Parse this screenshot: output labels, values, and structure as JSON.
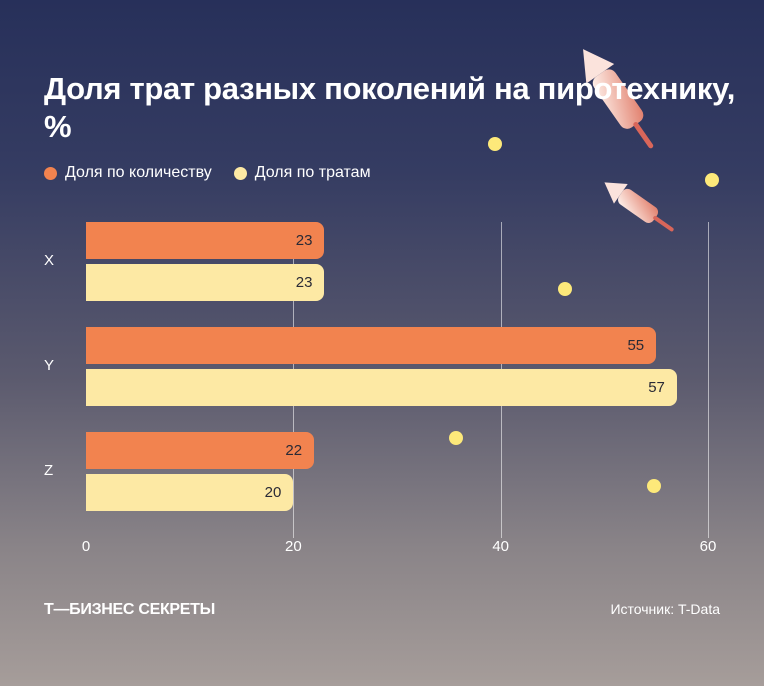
{
  "chart_data": {
    "type": "bar",
    "orientation": "horizontal",
    "title": "Доля трат разных поколений на пиротехнику, %",
    "categories": [
      "X",
      "Y",
      "Z"
    ],
    "series": [
      {
        "name": "Доля по количеству",
        "color": "#f2834f",
        "values": [
          23,
          55,
          22
        ]
      },
      {
        "name": "Доля по тратам",
        "color": "#fde9a4",
        "values": [
          23,
          57,
          20
        ]
      }
    ],
    "xlim": [
      0,
      60
    ],
    "xticks": [
      "0",
      "20",
      "40",
      "60"
    ],
    "grid": true,
    "legend": "top-left"
  },
  "footer": {
    "brand": "Т—БИЗНЕС СЕКРЕТЫ",
    "source": "Источник: T-Data"
  }
}
